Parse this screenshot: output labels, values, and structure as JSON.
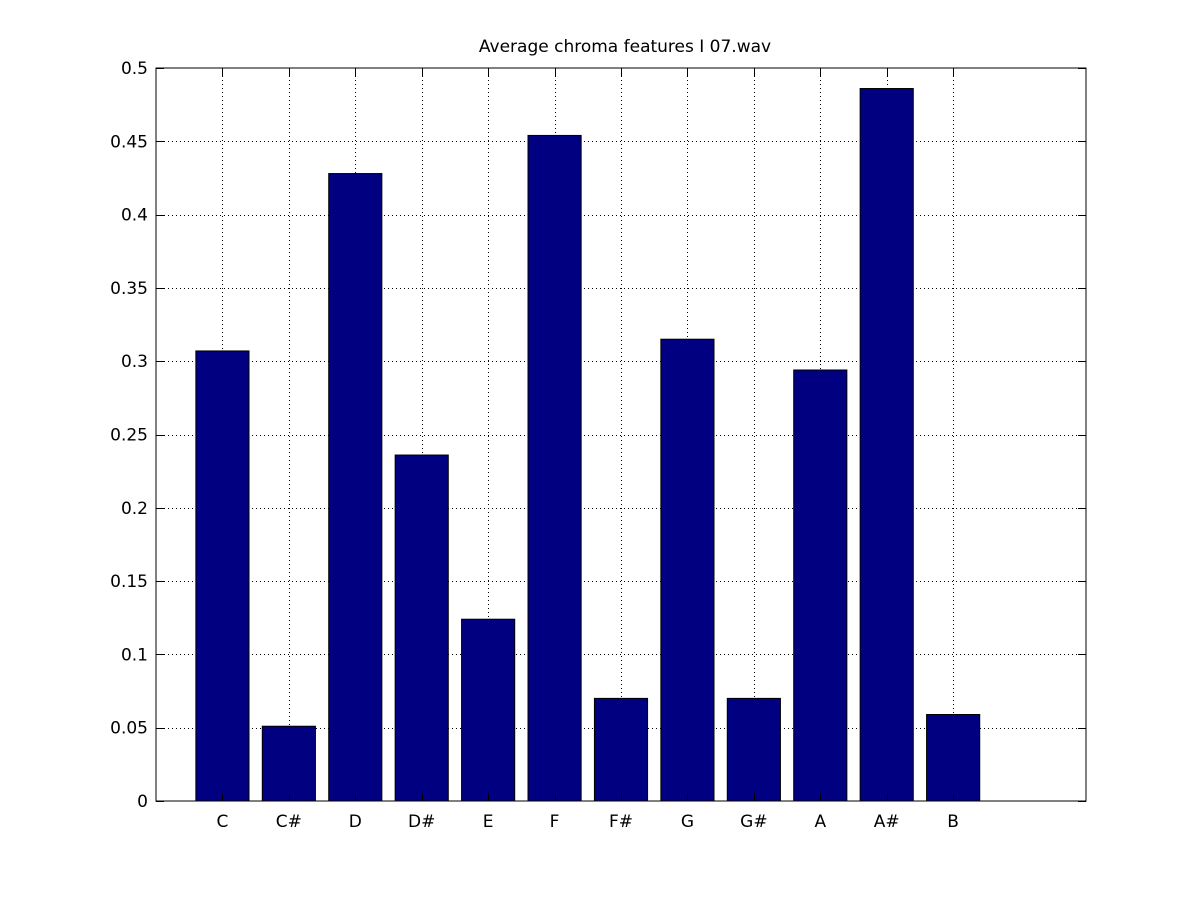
{
  "chart_data": {
    "type": "bar",
    "title": "Average chroma features I 07.wav",
    "xlabel": "",
    "ylabel": "",
    "categories": [
      "C",
      "C#",
      "D",
      "D#",
      "E",
      "F",
      "F#",
      "G",
      "G#",
      "A",
      "A#",
      "B"
    ],
    "values": [
      0.307,
      0.051,
      0.428,
      0.236,
      0.124,
      0.454,
      0.07,
      0.315,
      0.07,
      0.294,
      0.486,
      0.059
    ],
    "xlim": [
      0,
      14
    ],
    "ylim": [
      0,
      0.5
    ],
    "yticks": [
      0,
      0.05,
      0.1,
      0.15,
      0.2,
      0.25,
      0.3,
      0.35,
      0.4,
      0.45,
      0.5
    ],
    "ytick_labels": [
      "0",
      "0.05",
      "0.1",
      "0.15",
      "0.2",
      "0.25",
      "0.3",
      "0.35",
      "0.4",
      "0.45",
      "0.5"
    ],
    "grid": true,
    "bar_color": "#000080"
  }
}
